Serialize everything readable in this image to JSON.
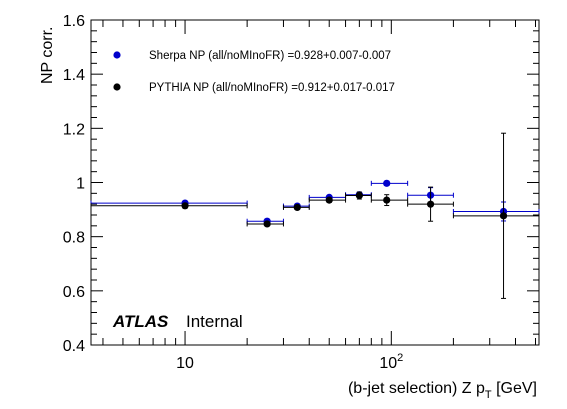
{
  "chart_data": {
    "type": "scatter",
    "ylabel": "NP corr.",
    "xlabel_main": "(b-jet selection) Z p",
    "xlabel_sub": "T",
    "xlabel_unit": " [GeV]",
    "x_scale": "log",
    "xlim": [
      3.5,
      520
    ],
    "ylim": [
      0.4,
      1.6
    ],
    "y_ticks": [
      0.4,
      0.6,
      0.8,
      1,
      1.2,
      1.4,
      1.6
    ],
    "y_tick_labels": [
      "0.4",
      "0.6",
      "0.8",
      "1",
      "1.2",
      "1.4",
      "1.6"
    ],
    "x_major_ticks": [
      {
        "value": 10,
        "base": "10",
        "exp": ""
      },
      {
        "value": 100,
        "base": "10",
        "exp": "2"
      }
    ],
    "x_minor_ticks": [
      4,
      5,
      6,
      7,
      8,
      9,
      20,
      30,
      40,
      50,
      60,
      70,
      80,
      90,
      200,
      300,
      400,
      500
    ],
    "legend_position": "top-left",
    "annotation": {
      "atlas": "ATLAS",
      "label": "Internal"
    },
    "series": [
      {
        "name": "Sherpa NP (all/noMInoFR) =0.928+0.007-0.007",
        "color": "#0000cc",
        "points": [
          {
            "x": 10,
            "xlo": 0.5,
            "xhi": 20,
            "y": 0.924,
            "yerr": 0.006
          },
          {
            "x": 25,
            "xlo": 20,
            "xhi": 30,
            "y": 0.857,
            "yerr": 0.006
          },
          {
            "x": 35,
            "xlo": 30,
            "xhi": 40,
            "y": 0.913,
            "yerr": 0.007
          },
          {
            "x": 50,
            "xlo": 40,
            "xhi": 60,
            "y": 0.945,
            "yerr": 0.007
          },
          {
            "x": 70,
            "xlo": 60,
            "xhi": 80,
            "y": 0.955,
            "yerr": 0.008
          },
          {
            "x": 95,
            "xlo": 80,
            "xhi": 120,
            "y": 0.997,
            "yerr": 0.008
          },
          {
            "x": 155,
            "xlo": 120,
            "xhi": 200,
            "y": 0.953,
            "yerr": 0.028
          },
          {
            "x": 350,
            "xlo": 200,
            "xhi": 520,
            "y": 0.893,
            "yerr": 0.035
          }
        ]
      },
      {
        "name": "PYTHIA NP (all/noMInoFR) =0.912+0.017-0.017",
        "color": "#000000",
        "points": [
          {
            "x": 10,
            "xlo": 0.5,
            "xhi": 20,
            "y": 0.914,
            "yerr": 0.009
          },
          {
            "x": 25,
            "xlo": 20,
            "xhi": 30,
            "y": 0.847,
            "yerr": 0.007
          },
          {
            "x": 35,
            "xlo": 30,
            "xhi": 40,
            "y": 0.908,
            "yerr": 0.007
          },
          {
            "x": 50,
            "xlo": 40,
            "xhi": 60,
            "y": 0.935,
            "yerr": 0.008
          },
          {
            "x": 70,
            "xlo": 60,
            "xhi": 80,
            "y": 0.952,
            "yerr": 0.013
          },
          {
            "x": 95,
            "xlo": 80,
            "xhi": 120,
            "y": 0.935,
            "yerr": 0.02
          },
          {
            "x": 155,
            "xlo": 120,
            "xhi": 200,
            "y": 0.92,
            "yerr": 0.063
          },
          {
            "x": 350,
            "xlo": 200,
            "xhi": 520,
            "y": 0.877,
            "yerr": 0.305
          }
        ]
      }
    ]
  }
}
